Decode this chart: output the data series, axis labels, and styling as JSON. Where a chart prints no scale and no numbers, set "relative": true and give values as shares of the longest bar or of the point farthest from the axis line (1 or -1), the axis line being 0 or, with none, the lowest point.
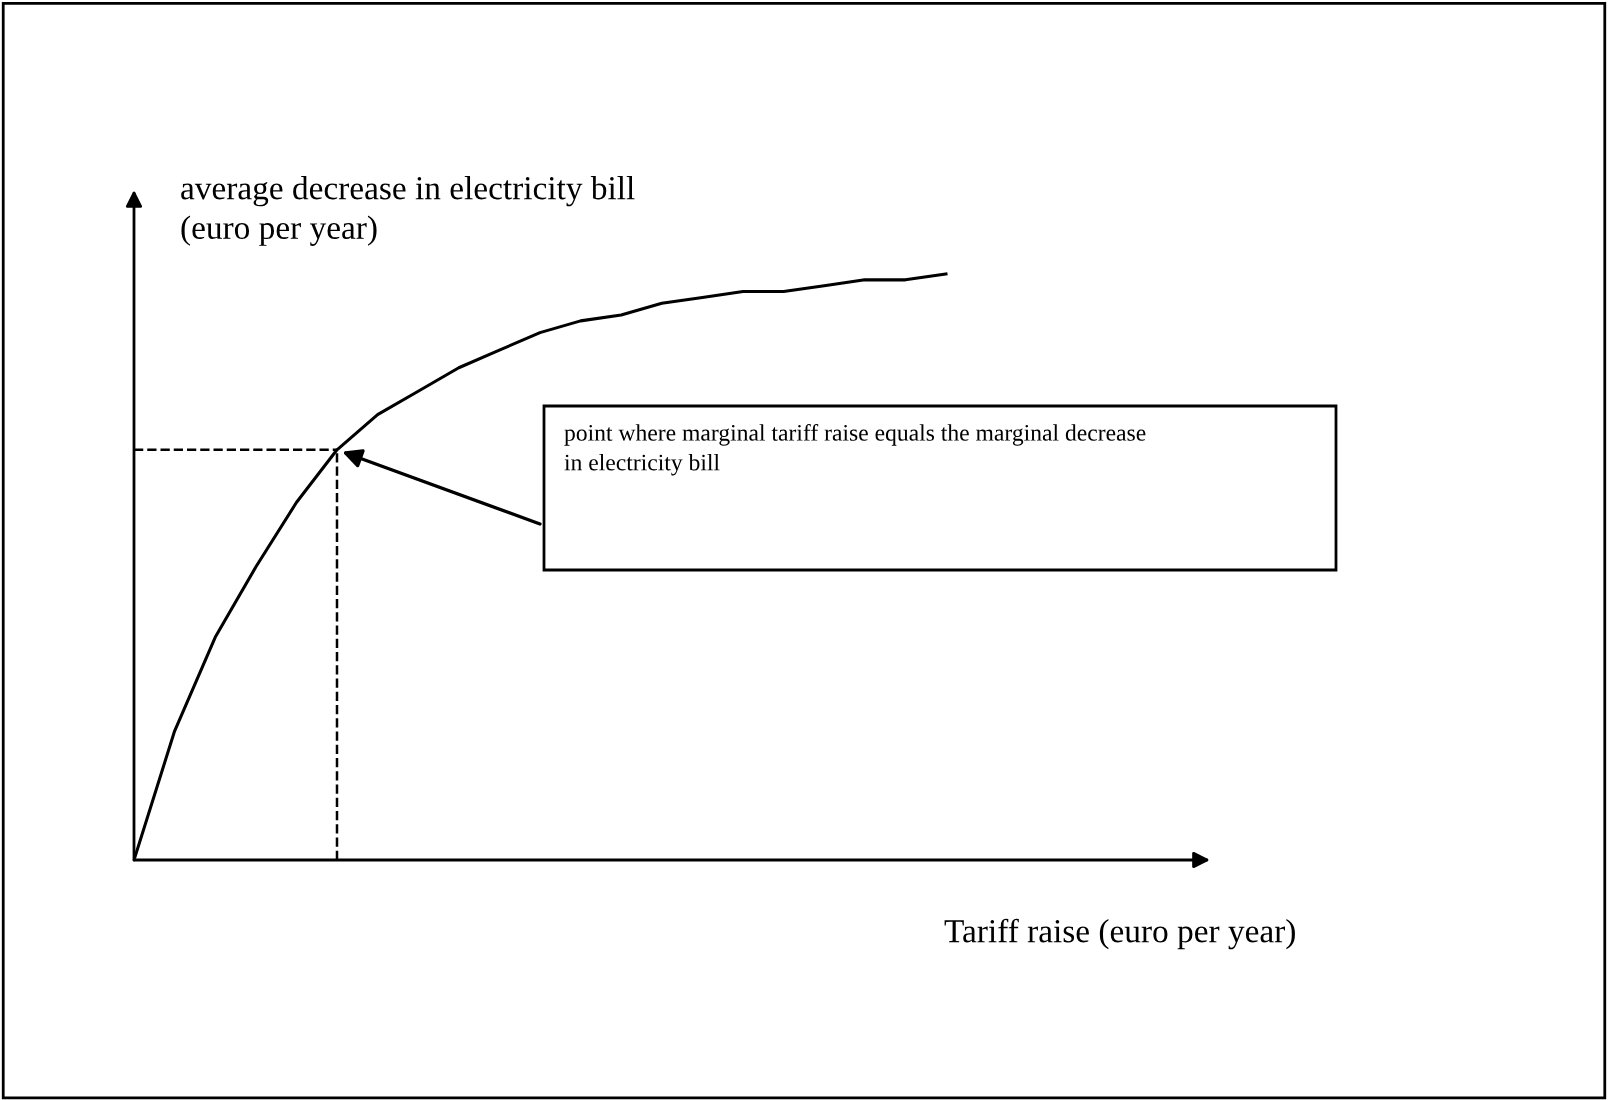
{
  "chart_data": {
    "type": "line",
    "relative": true,
    "categories": [
      null,
      null,
      null,
      null,
      null,
      null,
      null,
      null,
      null,
      null,
      null,
      null,
      null,
      null,
      null,
      null,
      null,
      null,
      null,
      null,
      null
    ],
    "series": [
      {
        "color": "#000000",
        "values": [
          0,
          0.22,
          0.38,
          0.5,
          0.61,
          0.7,
          0.76,
          0.8,
          0.84,
          0.87,
          0.9,
          0.92,
          0.93,
          0.95,
          0.96,
          0.97,
          0.97,
          0.98,
          0.99,
          0.99,
          1
        ]
      }
    ],
    "ylabel": "average decrease in electricity bill\n(euro per year)",
    "xlabel": "Tariff raise (euro per year)",
    "ref_lines": [
      {
        "axis": "y",
        "value": 0.7,
        "line_style": "dashed",
        "color": "#000000"
      }
    ],
    "annotations": [
      "point where marginal tariff raise equals the marginal decrease\nin electricity bill"
    ],
    "grid": false,
    "marker": "none",
    "line_style": "solid"
  }
}
